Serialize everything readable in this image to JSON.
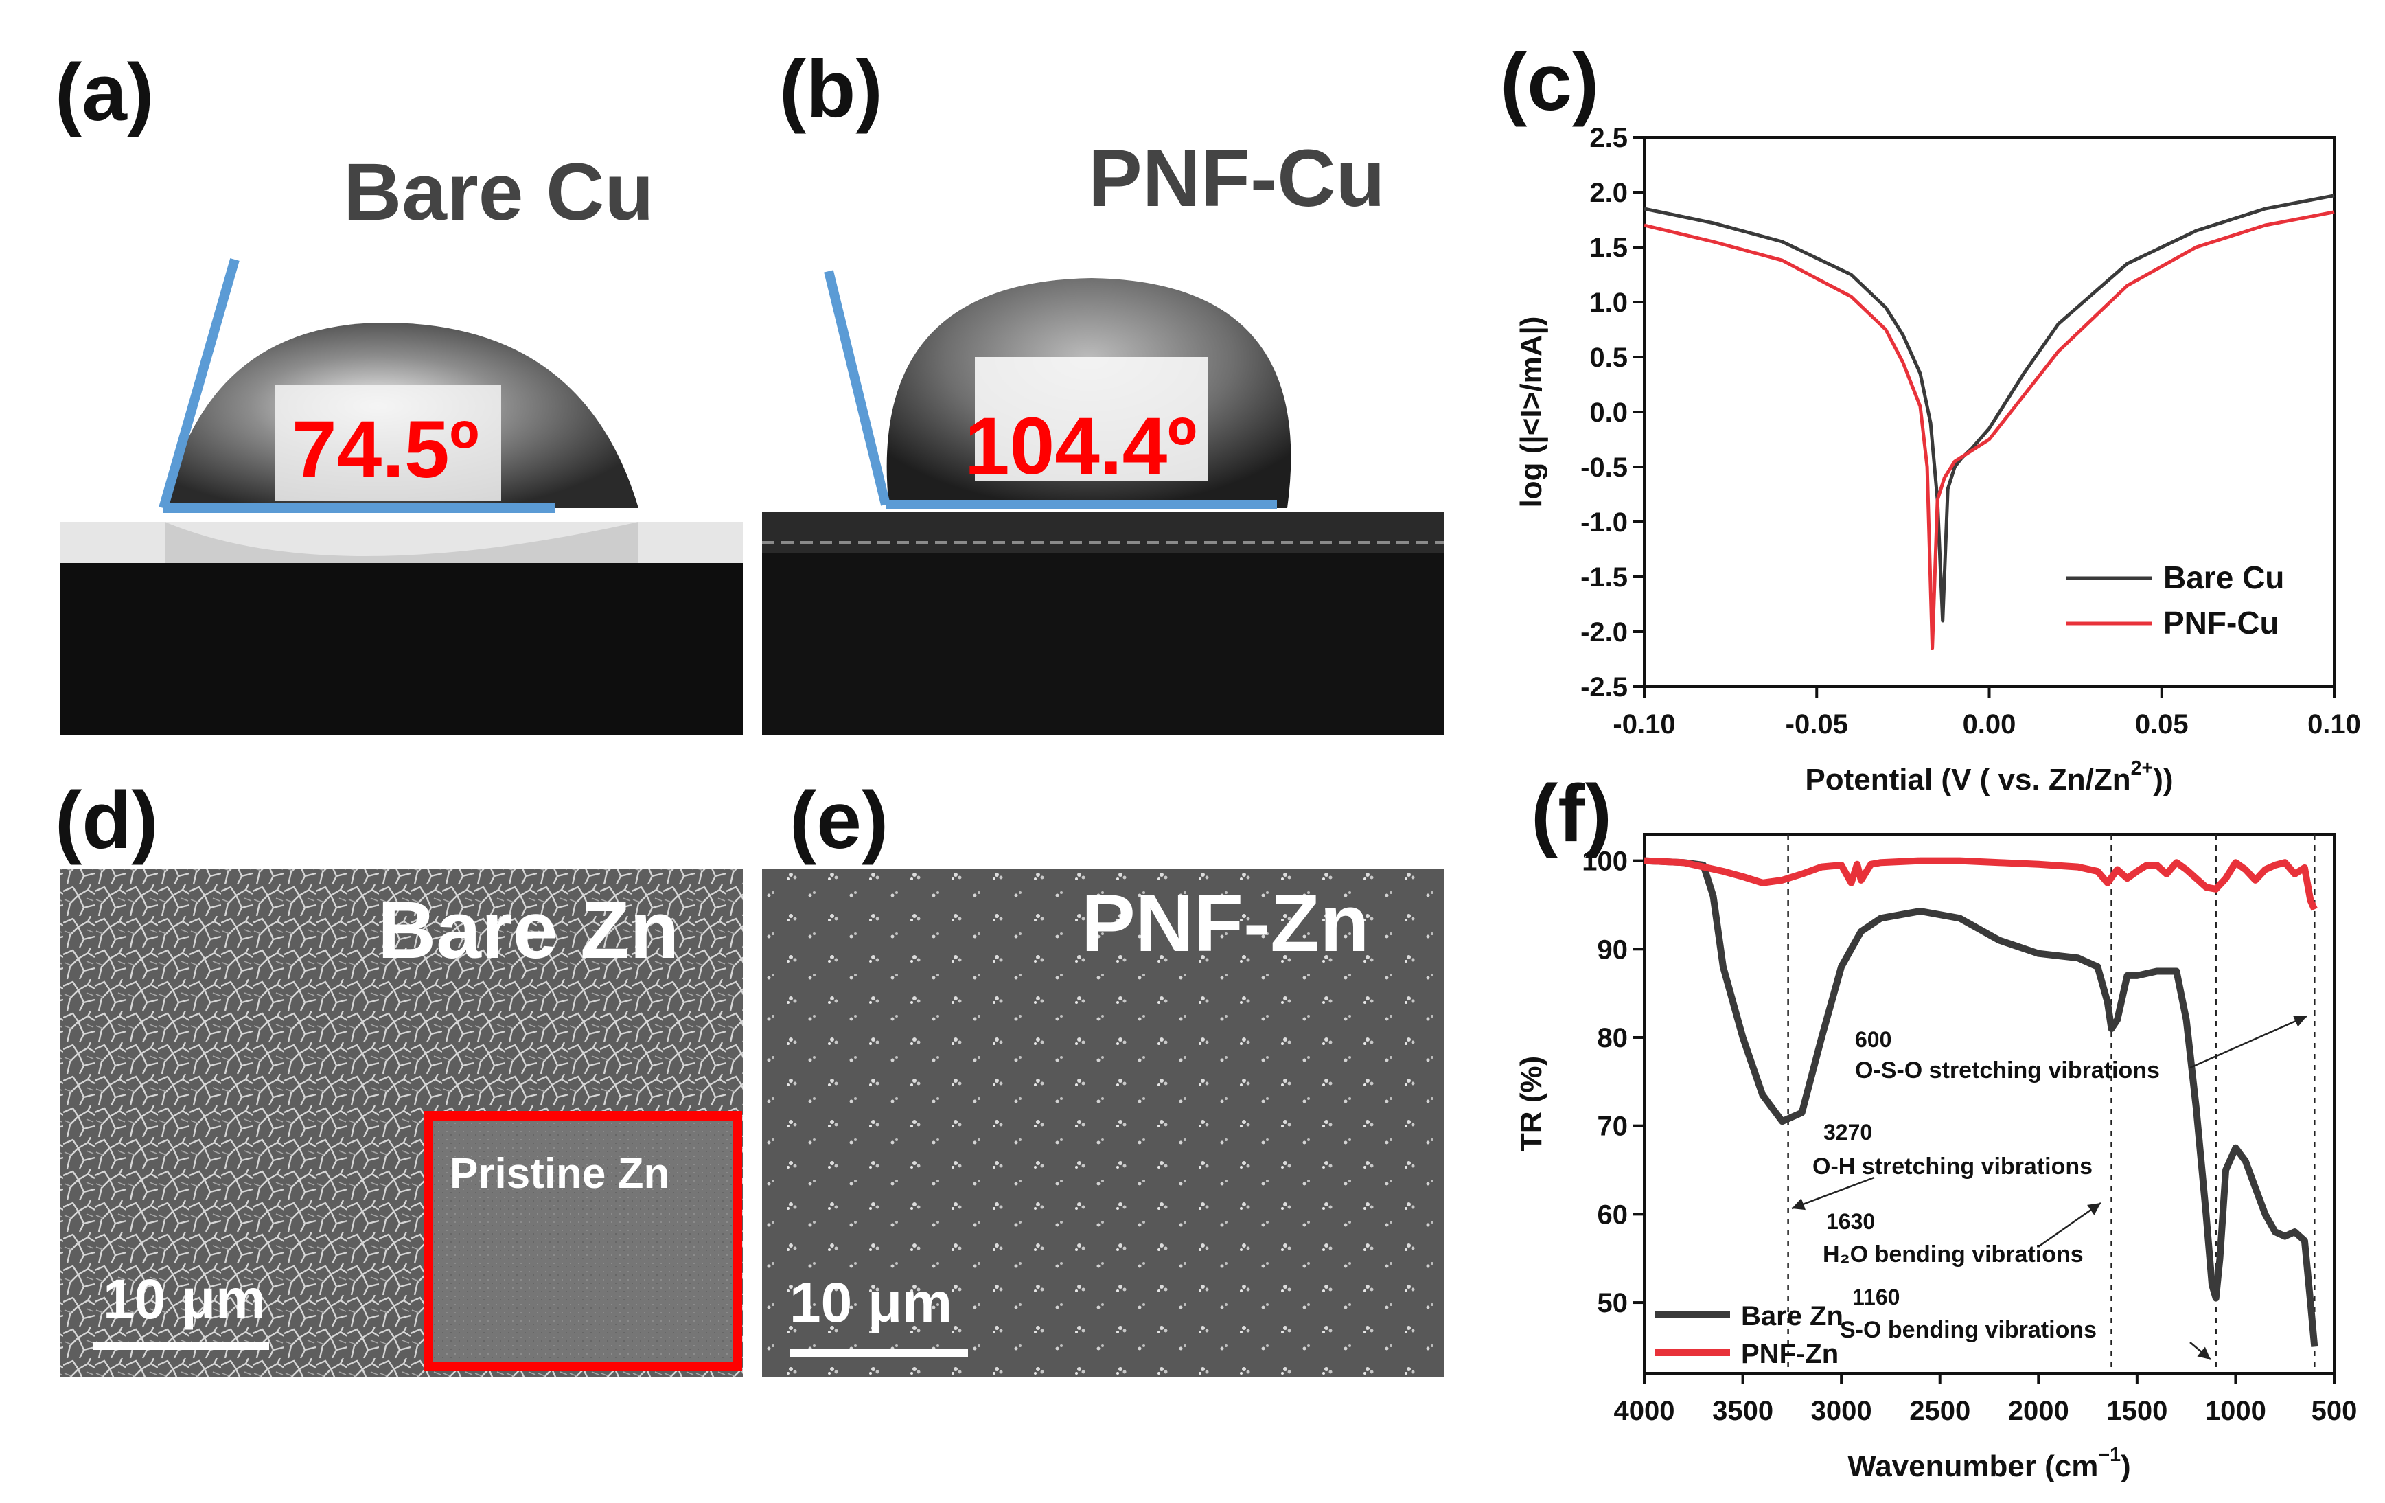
{
  "panels": {
    "a": {
      "letter": "(a)",
      "title": "Bare Cu",
      "angle": "74.5º"
    },
    "b": {
      "letter": "(b)",
      "title": "PNF-Cu",
      "angle": "104.4º"
    },
    "c": {
      "letter": "(c)"
    },
    "d": {
      "letter": "(d)",
      "title": "Bare Zn",
      "inset": "Pristine Zn",
      "scalebar": "10 μm"
    },
    "e": {
      "letter": "(e)",
      "title": "PNF-Zn",
      "scalebar": "10 μm"
    },
    "f": {
      "letter": "(f)"
    }
  },
  "colors": {
    "black_series": "#3a3a3a",
    "red_series": "#e8323a",
    "contact_line": "#5b9bd5",
    "angle_text": "#ff0000",
    "inset_border": "#ff0000"
  },
  "chart_data": [
    {
      "id": "c",
      "type": "line",
      "xlabel": "Potential (V ( vs. Zn/Zn",
      "xlabel_sup": "2+",
      "xlabel_end": "))",
      "ylabel": "log (|<I>/mA|)",
      "xlim": [
        -0.1,
        0.1
      ],
      "ylim": [
        -2.5,
        2.5
      ],
      "xticks": [
        "-0.10",
        "-0.05",
        "0.00",
        "0.05",
        "0.10"
      ],
      "xtick_values": [
        -0.1,
        -0.05,
        0.0,
        0.05,
        0.1
      ],
      "yticks": [
        "2.5",
        "2.0",
        "1.5",
        "1.0",
        "0.5",
        "0.0",
        "-0.5",
        "-1.0",
        "-1.5",
        "-2.0",
        "-2.5"
      ],
      "ytick_values": [
        2.5,
        2.0,
        1.5,
        1.0,
        0.5,
        0.0,
        -0.5,
        -1.0,
        -1.5,
        -2.0,
        -2.5
      ],
      "legend_position": "bottom-right",
      "series": [
        {
          "name": "Bare Cu",
          "color": "#3a3a3a",
          "x": [
            -0.1,
            -0.08,
            -0.06,
            -0.04,
            -0.03,
            -0.025,
            -0.02,
            -0.017,
            -0.015,
            -0.0135,
            -0.012,
            -0.01,
            -0.008,
            -0.005,
            0.0,
            0.01,
            0.02,
            0.04,
            0.06,
            0.08,
            0.1
          ],
          "y": [
            1.85,
            1.72,
            1.55,
            1.25,
            0.95,
            0.7,
            0.35,
            -0.1,
            -0.8,
            -1.9,
            -0.7,
            -0.5,
            -0.42,
            -0.33,
            -0.15,
            0.35,
            0.8,
            1.35,
            1.65,
            1.85,
            1.97
          ]
        },
        {
          "name": "PNF-Cu",
          "color": "#e8323a",
          "x": [
            -0.1,
            -0.08,
            -0.06,
            -0.04,
            -0.03,
            -0.025,
            -0.02,
            -0.018,
            -0.0165,
            -0.015,
            -0.013,
            -0.01,
            -0.005,
            0.0,
            0.01,
            0.02,
            0.04,
            0.06,
            0.08,
            0.1
          ],
          "y": [
            1.7,
            1.55,
            1.38,
            1.05,
            0.75,
            0.45,
            0.05,
            -0.5,
            -2.15,
            -0.8,
            -0.6,
            -0.45,
            -0.35,
            -0.25,
            0.15,
            0.55,
            1.15,
            1.5,
            1.7,
            1.82
          ]
        }
      ]
    },
    {
      "id": "f",
      "type": "line",
      "xlabel": "Wavenumber (cm",
      "xlabel_sup": "−1",
      "xlabel_end": ")",
      "ylabel": "TR (%)",
      "xlim": [
        4000,
        500
      ],
      "ylim": [
        42,
        103
      ],
      "xticks": [
        "4000",
        "3500",
        "3000",
        "2500",
        "2000",
        "1500",
        "1000",
        "500"
      ],
      "xtick_values": [
        4000,
        3500,
        3000,
        2500,
        2000,
        1500,
        1000,
        500
      ],
      "yticks": [
        "100",
        "90",
        "80",
        "70",
        "60",
        "50"
      ],
      "ytick_values": [
        100,
        90,
        80,
        70,
        60,
        50
      ],
      "legend_position": "bottom-left",
      "reference_lines": [
        3270,
        1630,
        1100,
        600
      ],
      "annotations": [
        {
          "number": "600",
          "text": "O-S-O stretching vibrations"
        },
        {
          "number": "3270",
          "text": "O-H stretching vibrations"
        },
        {
          "number": "1630",
          "text": "H₂O bending vibrations"
        },
        {
          "number": "1160",
          "text": "S-O bending  vibrations"
        }
      ],
      "series": [
        {
          "name": "Bare Zn",
          "color": "#3a3a3a",
          "x": [
            4000,
            3800,
            3700,
            3650,
            3600,
            3500,
            3400,
            3300,
            3200,
            3100,
            3000,
            2900,
            2800,
            2600,
            2400,
            2200,
            2000,
            1800,
            1700,
            1650,
            1630,
            1600,
            1550,
            1500,
            1400,
            1300,
            1250,
            1200,
            1150,
            1120,
            1100,
            1080,
            1050,
            1000,
            950,
            900,
            850,
            800,
            750,
            700,
            650,
            620,
            600
          ],
          "y": [
            100,
            99.8,
            99.5,
            96,
            88,
            80,
            73.5,
            70.5,
            71.5,
            80,
            88,
            92,
            93.5,
            94.3,
            93.5,
            91,
            89.5,
            89,
            88,
            84,
            81,
            82,
            87,
            87,
            87.5,
            87.5,
            82,
            72,
            60,
            52,
            50.5,
            55,
            65,
            67.5,
            66,
            63,
            60,
            58,
            57.5,
            58,
            57,
            50,
            45
          ]
        },
        {
          "name": "PNF-Zn",
          "color": "#e8323a",
          "x": [
            4000,
            3800,
            3600,
            3500,
            3400,
            3300,
            3200,
            3100,
            3000,
            2950,
            2920,
            2900,
            2850,
            2800,
            2600,
            2400,
            2200,
            2000,
            1800,
            1700,
            1650,
            1600,
            1550,
            1500,
            1450,
            1400,
            1350,
            1300,
            1250,
            1200,
            1150,
            1100,
            1050,
            1000,
            950,
            900,
            850,
            800,
            750,
            700,
            650,
            620,
            600
          ],
          "y": [
            100,
            99.8,
            98.8,
            98.2,
            97.5,
            97.8,
            98.5,
            99.3,
            99.5,
            97.5,
            99.6,
            97.8,
            99.6,
            99.8,
            100,
            100,
            99.8,
            99.6,
            99.3,
            98.8,
            97.5,
            99.0,
            98.0,
            98.8,
            99.5,
            99.5,
            98.5,
            99.8,
            99.0,
            98.0,
            97.0,
            96.8,
            98.0,
            99.8,
            99.0,
            97.8,
            99.0,
            99.5,
            99.8,
            98.5,
            99.2,
            95.5,
            94.5
          ]
        }
      ]
    }
  ]
}
